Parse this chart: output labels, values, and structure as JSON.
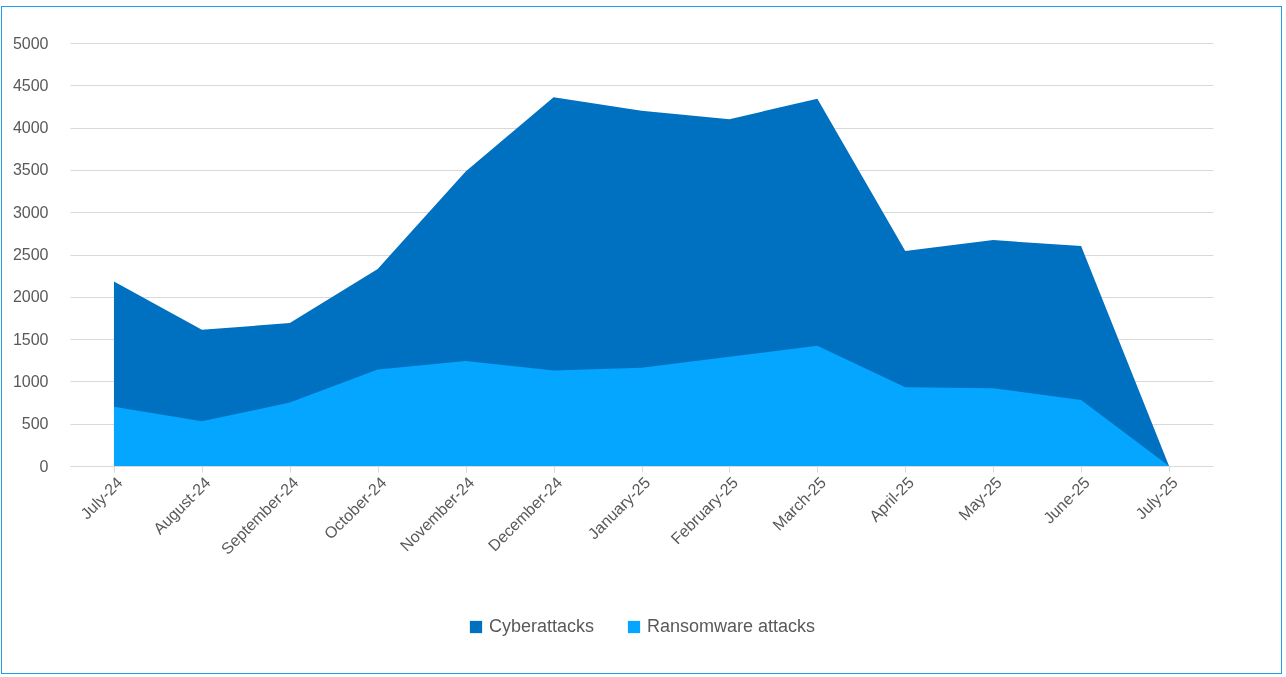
{
  "chart_data": {
    "type": "area",
    "categories": [
      "July-24",
      "August-24",
      "September-24",
      "October-24",
      "November-24",
      "December-24",
      "January-25",
      "February-25",
      "March-25",
      "April-25",
      "May-25",
      "June-25",
      "July-25"
    ],
    "series": [
      {
        "name": "Cyberattacks",
        "color": "#0070c0",
        "values": [
          2180,
          1610,
          1690,
          2330,
          3480,
          4360,
          4200,
          4100,
          4340,
          2540,
          2670,
          2600,
          0
        ]
      },
      {
        "name": "Ransomware attacks",
        "color": "#05a6ff",
        "values": [
          700,
          530,
          750,
          1140,
          1240,
          1130,
          1160,
          1290,
          1420,
          930,
          920,
          780,
          0
        ]
      }
    ],
    "ylim": [
      0,
      5000
    ],
    "yticks": [
      0,
      500,
      1000,
      1500,
      2000,
      2500,
      3000,
      3500,
      4000,
      4500,
      5000
    ],
    "grid": "y",
    "legend": "bottom"
  }
}
